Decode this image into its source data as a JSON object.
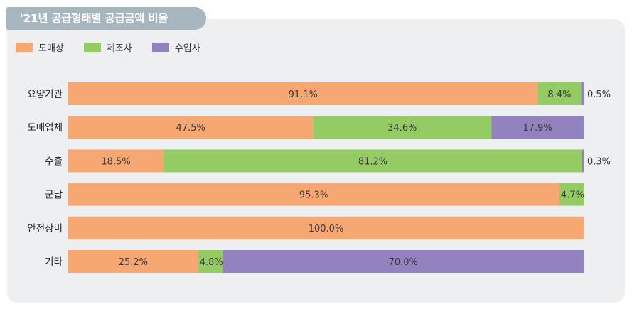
{
  "title": "'21년 공급형태별 공급금액 비율",
  "colors": {
    "panel": "#eeeff0",
    "title_tab": "#a8b6bf",
    "title_text": "#ffffff",
    "value_text": "#3a3a3a"
  },
  "chart_data": {
    "type": "bar",
    "orientation": "horizontal",
    "stacked": true,
    "unit": "%",
    "xlim": [
      0,
      100
    ],
    "legend_position": "top-left",
    "categories": [
      "요양기관",
      "도매업체",
      "수출",
      "군납",
      "안전상비",
      "기타"
    ],
    "series": [
      {
        "name": "도매상",
        "color": "#f6a772",
        "values": [
          91.1,
          47.5,
          18.5,
          95.3,
          100.0,
          25.2
        ]
      },
      {
        "name": "제조사",
        "color": "#94cb62",
        "values": [
          8.4,
          34.6,
          81.2,
          4.7,
          0.0,
          4.8
        ]
      },
      {
        "name": "수입사",
        "color": "#9282bf",
        "values": [
          0.5,
          17.9,
          0.3,
          0.0,
          0.0,
          70.0
        ]
      }
    ],
    "data_labels": [
      [
        "91.1%",
        "8.4%",
        "0.5%"
      ],
      [
        "47.5%",
        "34.6%",
        "17.9%"
      ],
      [
        "18.5%",
        "81.2%",
        "0.3%"
      ],
      [
        "95.3%",
        "4.7%",
        ""
      ],
      [
        "100.0%",
        "",
        ""
      ],
      [
        "25.2%",
        "4.8%",
        "70.0%"
      ]
    ]
  }
}
